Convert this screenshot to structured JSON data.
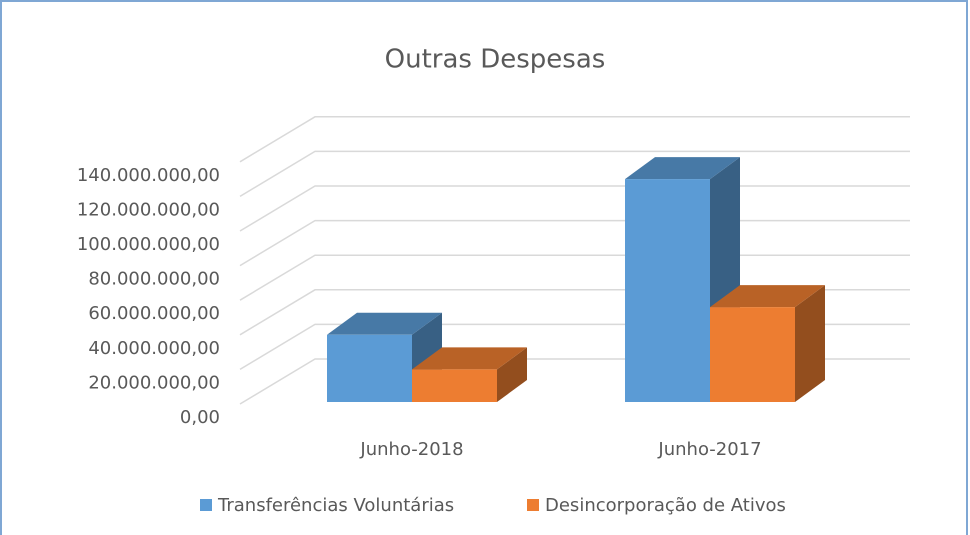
{
  "chart_data": {
    "type": "bar3d",
    "title": "Outras Despesas",
    "categories": [
      "Junho-2018",
      "Junho-2017"
    ],
    "series": [
      {
        "name": "Transferências Voluntárias",
        "color": "#5b9bd5",
        "values": [
          40000000,
          130000000
        ]
      },
      {
        "name": "Desincorporação de Ativos",
        "color": "#ed7d31",
        "values": [
          20000000,
          56000000
        ]
      }
    ],
    "ylim": [
      0,
      160000000
    ],
    "yticks": [
      {
        "value": 0,
        "label": "0,00"
      },
      {
        "value": 20000000,
        "label": "20.000.000,00"
      },
      {
        "value": 40000000,
        "label": "40.000.000,00"
      },
      {
        "value": 60000000,
        "label": "60.000.000,00"
      },
      {
        "value": 80000000,
        "label": "80.000.000,00"
      },
      {
        "value": 100000000,
        "label": "100.000.000,00"
      },
      {
        "value": 120000000,
        "label": "120.000.000,00"
      },
      {
        "value": 140000000,
        "label": "140.000.000,00"
      }
    ],
    "grid": true,
    "legend": "bottom"
  }
}
